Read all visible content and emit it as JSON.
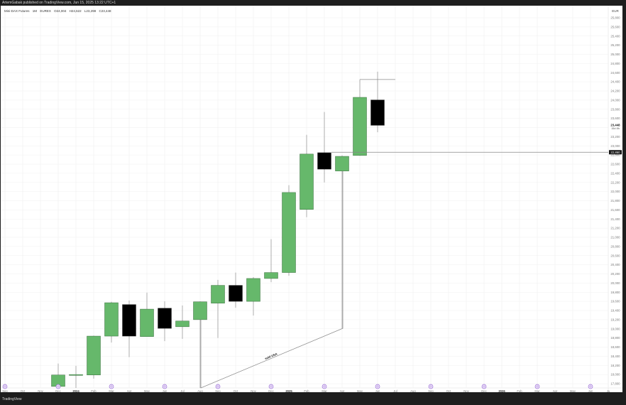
{
  "header": {
    "published": "ArtemGabak published on TradingView.com, Jun 15, 2025 13:22 UTC+1"
  },
  "legend": {
    "symbol": "Mini-DAX Futures",
    "interval": "1M",
    "exchange": "EUREX",
    "open": "O24,004",
    "high": "H24,622",
    "low": "L23,298",
    "close": "C23,448"
  },
  "footer": {
    "logo": "TradingView"
  },
  "colors": {
    "up": "#66b86b",
    "down": "#000000",
    "border": "#3a6e3e",
    "wick": "#9a9a9a",
    "event": "#9b6ed6"
  },
  "chart_data": {
    "type": "candlestick",
    "currency": "EUR",
    "ylim": [
      17800,
      25800
    ],
    "y_ticks": [
      "25,800",
      "25,600",
      "25,400",
      "25,200",
      "25,000",
      "24,800",
      "24,600",
      "24,400",
      "24,200",
      "24,000",
      "23,800",
      "23,600",
      "23,200",
      "23,000",
      "22,800",
      "22,600",
      "22,400",
      "22,200",
      "22,000",
      "21,800",
      "21,600",
      "21,400",
      "21,200",
      "21,000",
      "20,800",
      "20,600",
      "20,400",
      "20,200",
      "20,000",
      "19,800",
      "19,600",
      "19,400",
      "19,200",
      "19,000",
      "18,800",
      "18,600",
      "18,400",
      "18,200",
      "18,000",
      "17,800"
    ],
    "x_ticks": [
      "Sep",
      "Oct",
      "Nov",
      "Dec",
      "2024",
      "Feb",
      "Mar",
      "Apr",
      "May",
      "Jun",
      "Jul",
      "Aug",
      "Sep",
      "Oct",
      "Nov",
      "Dec",
      "2025",
      "Feb",
      "Mar",
      "Apr",
      "May",
      "Jun",
      "Jul",
      "Aug",
      "Sep",
      "Oct",
      "Nov",
      "Dec",
      "2026",
      "Feb",
      "Mar",
      "Apr",
      "May",
      "Jun",
      "Ju"
    ],
    "event_months": [
      "Sep",
      "Dec",
      "Mar",
      "Jun",
      "Sep",
      "Dec",
      "Mar",
      "Jun",
      "Sep",
      "Dec",
      "Mar",
      "Jun"
    ],
    "candles": [
      {
        "month": "2023-12",
        "o": 17740,
        "h": 18240,
        "l": 17700,
        "c": 17990
      },
      {
        "month": "2024-01",
        "o": 17985,
        "h": 18190,
        "l": 17700,
        "c": 18000
      },
      {
        "month": "2024-02",
        "o": 17990,
        "h": 18850,
        "l": 17910,
        "c": 18840
      },
      {
        "month": "2024-03",
        "o": 18840,
        "h": 19590,
        "l": 18700,
        "c": 19570
      },
      {
        "month": "2024-04",
        "o": 19530,
        "h": 19620,
        "l": 18380,
        "c": 18840
      },
      {
        "month": "2024-05",
        "o": 18830,
        "h": 19790,
        "l": 18830,
        "c": 19430
      },
      {
        "month": "2024-06",
        "o": 19450,
        "h": 19600,
        "l": 18730,
        "c": 19010
      },
      {
        "month": "2024-07",
        "o": 19045,
        "h": 19510,
        "l": 18780,
        "c": 19170
      },
      {
        "month": "2024-08",
        "o": 19200,
        "h": 19600,
        "l": 17030,
        "c": 19590
      },
      {
        "month": "2024-09",
        "o": 19560,
        "h": 20070,
        "l": 18800,
        "c": 19950
      },
      {
        "month": "2024-10",
        "o": 19950,
        "h": 20230,
        "l": 19460,
        "c": 19600
      },
      {
        "month": "2024-11",
        "o": 19600,
        "h": 20130,
        "l": 19290,
        "c": 20100
      },
      {
        "month": "2024-12",
        "o": 20100,
        "h": 20960,
        "l": 20020,
        "c": 20230
      },
      {
        "month": "2025-01",
        "o": 20230,
        "h": 22140,
        "l": 20160,
        "c": 21980
      },
      {
        "month": "2025-02",
        "o": 21610,
        "h": 23240,
        "l": 21440,
        "c": 22820
      },
      {
        "month": "2025-03",
        "o": 22850,
        "h": 23740,
        "l": 22200,
        "c": 22490
      },
      {
        "month": "2025-04",
        "o": 22450,
        "h": 22790,
        "l": 19010,
        "c": 22770
      },
      {
        "month": "2025-05",
        "o": 22790,
        "h": 24450,
        "l": 22780,
        "c": 24060
      },
      {
        "month": "2025-06",
        "o": 24004,
        "h": 24622,
        "l": 23298,
        "c": 23448
      }
    ],
    "last_price": {
      "label": "23,448",
      "countdown": "15d 8h",
      "value": 23448
    },
    "level_line": {
      "label": "22,860",
      "value": 22860
    },
    "annotations": {
      "trendline_text": "sold USA",
      "trendline": [
        {
          "month": "2024-08",
          "value": 17050
        },
        {
          "month": "2025-04",
          "value": 19010
        }
      ],
      "high_ray": {
        "value": 24450
      }
    }
  }
}
